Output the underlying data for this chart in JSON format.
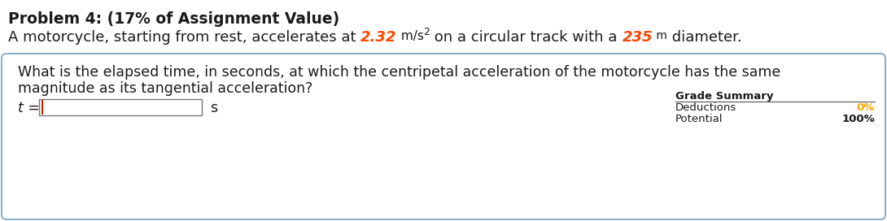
{
  "title_bold": "Problem 4: (17% of Assignment Value)",
  "problem_text_before": "A motorcycle, starting from rest, accelerates at ",
  "value1": "2.32",
  "unit1": " m/s",
  "unit1_sup": "2",
  "problem_text_middle": " on a circular track with a ",
  "value2": "235",
  "unit2": " m",
  "problem_text_after": " diameter.",
  "question_line1": "What is the elapsed time, in seconds, at which the centripetal acceleration of the motorcycle has the same",
  "question_line2": "magnitude as its tangential acceleration?",
  "answer_label": "t =",
  "answer_unit": "s",
  "grade_summary_title": "Grade Summary",
  "deductions_label": "Deductions",
  "deductions_value": "0%",
  "potential_label": "Potential",
  "potential_value": "100%",
  "highlight_color": "#FF4500",
  "orange_color": "#FFA500",
  "text_color": "#1a1a1a",
  "bg_color": "#FFFFFF",
  "box_border_color": "#8ab0c8",
  "title_fontsize": 13.5,
  "body_fontsize": 13,
  "question_fontsize": 12.5,
  "grade_fontsize": 9.5
}
